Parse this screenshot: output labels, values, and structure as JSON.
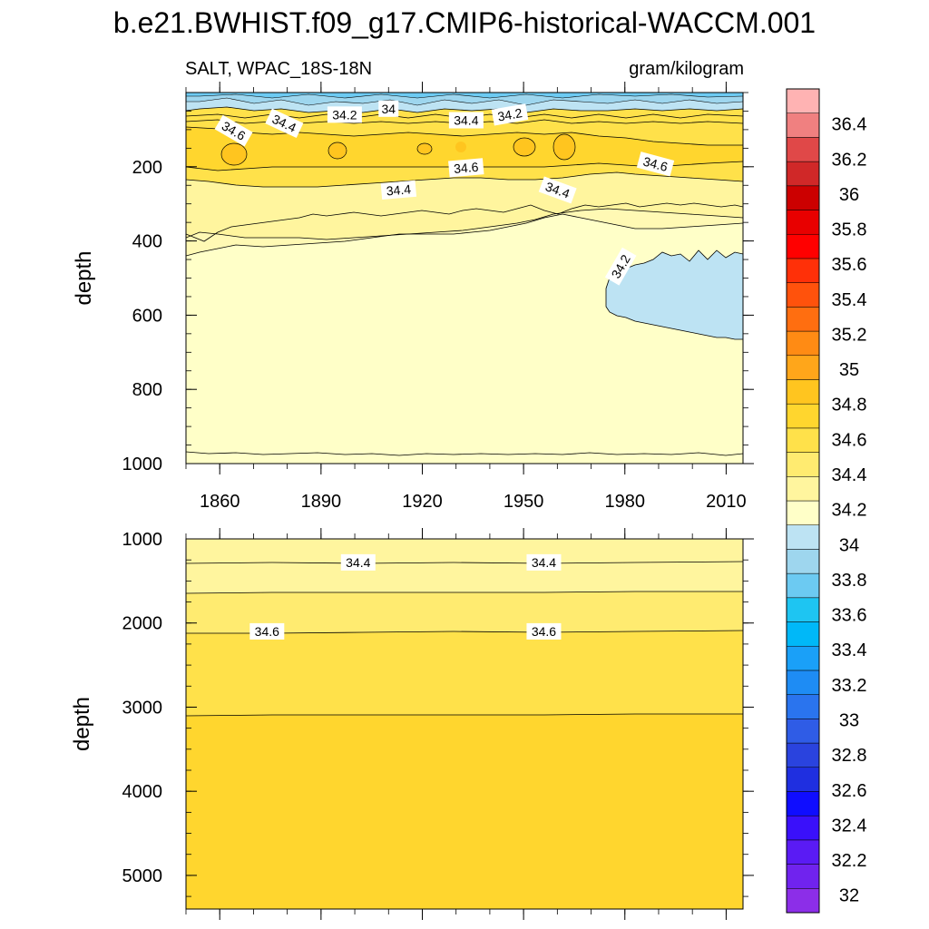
{
  "chart_data": {
    "type": "contour",
    "title": "b.e21.BWHIST.f09_g17.CMIP6-historical-WACCM.001",
    "left_label": "SALT, WPAC_18S-18N",
    "right_label": "gram/kilogram",
    "x": {
      "range": [
        1850,
        2015
      ],
      "ticks": [
        "1860",
        "1890",
        "1920",
        "1950",
        "1980",
        "2010"
      ],
      "tick_values": [
        1860,
        1890,
        1920,
        1950,
        1980,
        2010
      ]
    },
    "colorbar": {
      "levels": [
        32,
        32.2,
        32.4,
        32.6,
        32.8,
        33,
        33.2,
        33.4,
        33.6,
        33.8,
        34,
        34.2,
        34.4,
        34.6,
        34.8,
        35,
        35.2,
        35.4,
        35.6,
        35.8,
        36,
        36.2,
        36.4
      ],
      "labels": [
        "32",
        "32.2",
        "32.4",
        "32.6",
        "32.8",
        "33",
        "33.2",
        "33.4",
        "33.6",
        "33.8",
        "34",
        "34.2",
        "34.4",
        "34.6",
        "34.8",
        "35",
        "35.2",
        "35.4",
        "35.6",
        "35.8",
        "36",
        "36.2",
        "36.4"
      ],
      "colors": [
        "#8c2ee8",
        "#7023ee",
        "#5a1bf4",
        "#3a10fa",
        "#0f0dff",
        "#1f2fe0",
        "#2a43de",
        "#2f5ce6",
        "#2a74ee",
        "#1e8cf4",
        "#1aa0f8",
        "#00b8f8",
        "#1ec5f2",
        "#6ccaf2",
        "#9ed6ee",
        "#bde3f3",
        "#ffffc8",
        "#fff59e",
        "#ffeb70",
        "#ffe14a",
        "#ffd62e",
        "#ffc51f",
        "#ffa61a",
        "#ff8b14",
        "#ff6e10",
        "#ff520c",
        "#ff3008",
        "#ff0000",
        "#e80000",
        "#cc0000",
        "#d02828",
        "#e04848",
        "#f08080",
        "#ffb3b3"
      ]
    },
    "panels": [
      {
        "name": "upper",
        "ylabel": "depth",
        "y_range": [
          0,
          1000
        ],
        "y_ticks": [
          "200",
          "400",
          "600",
          "800",
          "1000"
        ],
        "y_tick_values": [
          200,
          400,
          600,
          800,
          1000
        ],
        "x_ticks_shown": true,
        "contour_labels": [
          {
            "text": "34.6",
            "x": 1864,
            "y": 105,
            "angle": 30
          },
          {
            "text": "34.4",
            "x": 1879,
            "y": 85,
            "angle": 25
          },
          {
            "text": "34.2",
            "x": 1897,
            "y": 62,
            "angle": 0
          },
          {
            "text": "34",
            "x": 1910,
            "y": 46,
            "angle": 0
          },
          {
            "text": "34.4",
            "x": 1933,
            "y": 77,
            "angle": 0
          },
          {
            "text": "34.2",
            "x": 1946,
            "y": 62,
            "angle": -10
          },
          {
            "text": "34.6",
            "x": 1933,
            "y": 205,
            "angle": -5
          },
          {
            "text": "34.4",
            "x": 1913,
            "y": 265,
            "angle": -5
          },
          {
            "text": "34.6",
            "x": 1989,
            "y": 195,
            "angle": 15
          },
          {
            "text": "34.4",
            "x": 1960,
            "y": 265,
            "angle": 20
          },
          {
            "text": "34.2",
            "x": 1979,
            "y": 470,
            "angle": -60
          }
        ]
      },
      {
        "name": "lower",
        "ylabel": "depth",
        "y_range": [
          1000,
          5400
        ],
        "y_ticks": [
          "1000",
          "2000",
          "3000",
          "4000",
          "5000"
        ],
        "y_tick_values": [
          1000,
          2000,
          3000,
          4000,
          5000
        ],
        "x_ticks_shown": false,
        "contour_labels": [
          {
            "text": "34.4",
            "x": 1901,
            "y": 1290,
            "angle": 0
          },
          {
            "text": "34.4",
            "x": 1956,
            "y": 1290,
            "angle": 0
          },
          {
            "text": "34.6",
            "x": 1874,
            "y": 2110,
            "angle": 0
          },
          {
            "text": "34.6",
            "x": 1956,
            "y": 2110,
            "angle": 0
          }
        ]
      }
    ]
  }
}
